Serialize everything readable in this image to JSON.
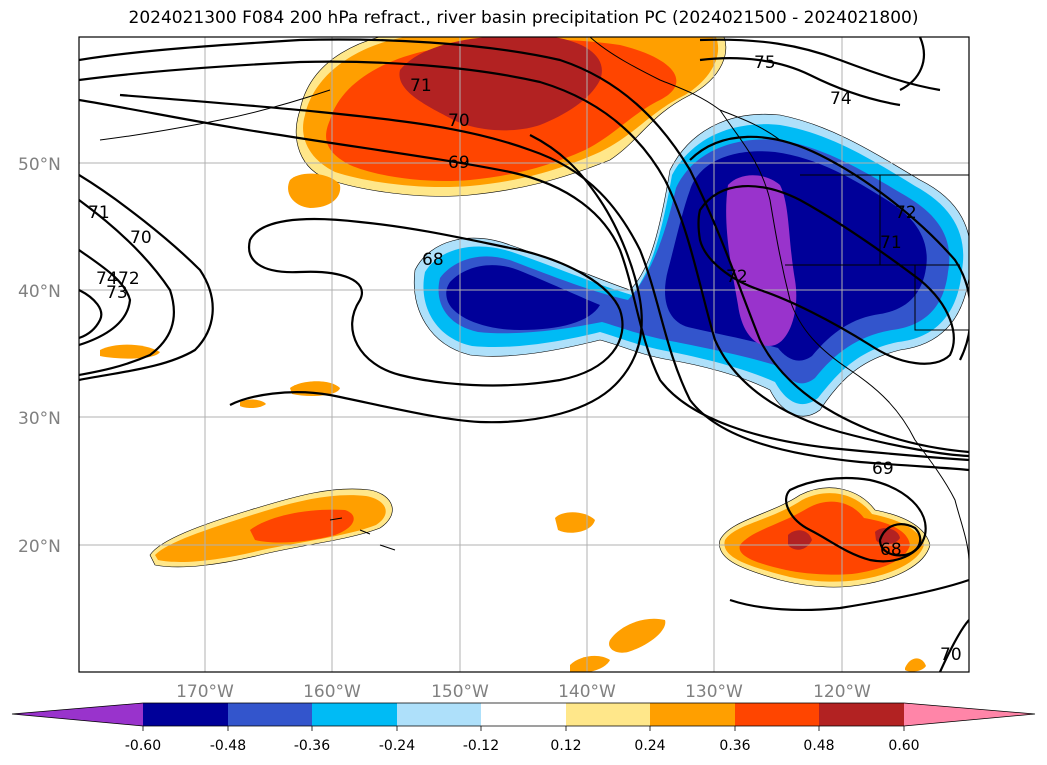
{
  "title": "2024021300 F084 200 hPa refract., river basin precipitation PC (2024021500 - 2024021800)",
  "longitude_labels": [
    "170°W",
    "160°W",
    "150°W",
    "140°W",
    "130°W",
    "120°W"
  ],
  "latitude_labels": [
    "50°N",
    "40°N",
    "30°N",
    "20°N"
  ],
  "colorbar": {
    "tick_labels": [
      "-0.60",
      "-0.48",
      "-0.36",
      "-0.24",
      "-0.12",
      "0.12",
      "0.24",
      "0.36",
      "0.48",
      "0.60"
    ],
    "colors": [
      "#9933cc",
      "#000099",
      "#3355cc",
      "#00bbf5",
      "#aee0fa",
      "#ffffff",
      "#ffe78a",
      "#ff9f00",
      "#ff4500",
      "#b22222",
      "#ff85a8"
    ]
  },
  "contour_labels": [
    "71",
    "70",
    "69",
    "68",
    "75",
    "74",
    "72",
    "71",
    "70",
    "72",
    "73",
    "74",
    "72",
    "71",
    "69",
    "68",
    "70"
  ],
  "fill_colors": {
    "neg_60": "#9933cc",
    "neg_48": "#000099",
    "neg_36": "#3355cc",
    "neg_24": "#00bbf5",
    "neg_12": "#aee0fa",
    "pos_12": "#ffe78a",
    "pos_24": "#ff9f00",
    "pos_36": "#ff4500",
    "pos_48": "#b22222"
  }
}
